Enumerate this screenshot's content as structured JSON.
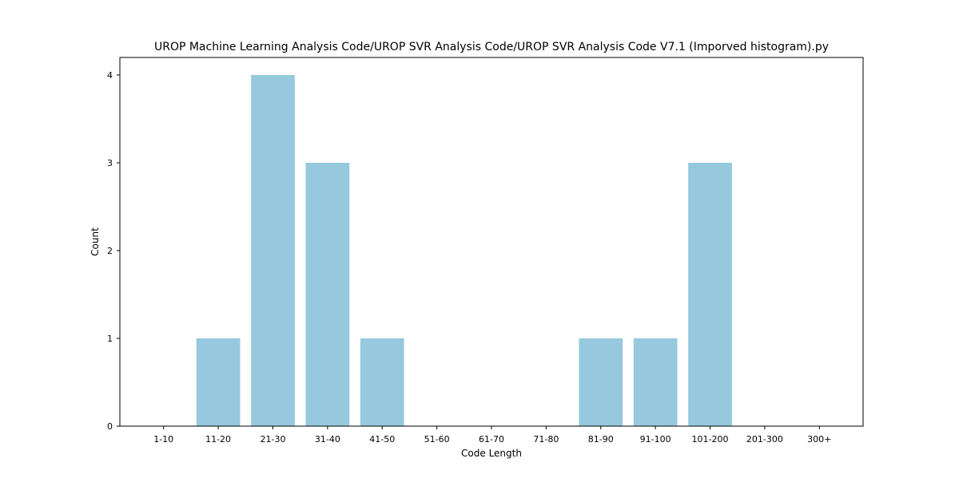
{
  "chart_data": {
    "type": "bar",
    "title": "UROP Machine Learning Analysis Code/UROP SVR Analysis Code/UROP SVR Analysis Code V7.1 (Imporved histogram).py",
    "xlabel": "Code Length",
    "ylabel": "Count",
    "categories": [
      "1-10",
      "11-20",
      "21-30",
      "31-40",
      "41-50",
      "51-60",
      "61-70",
      "71-80",
      "81-90",
      "91-100",
      "101-200",
      "201-300",
      "300+"
    ],
    "values": [
      0,
      1,
      4,
      3,
      1,
      0,
      0,
      0,
      1,
      1,
      3,
      0,
      0
    ],
    "ylim": [
      0,
      4.2
    ],
    "yticks": [
      0,
      1,
      2,
      3,
      4
    ],
    "grid": false,
    "legend": "none",
    "bar_color": "#96c9de"
  }
}
